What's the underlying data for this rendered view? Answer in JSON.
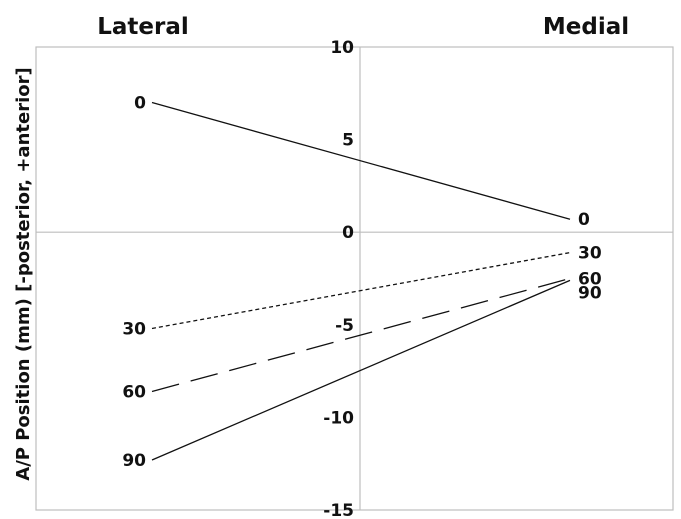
{
  "chart_data": {
    "type": "line",
    "ylabel": "A/P Position (mm) [-posterior, +anterior]",
    "categories": [
      "Lateral",
      "Medial"
    ],
    "ylim": [
      -15,
      10
    ],
    "yticks": [
      10,
      5,
      0,
      -5,
      -10,
      -15
    ],
    "grid": "axes-through-zero",
    "legend": "none",
    "series": [
      {
        "name": "0",
        "values": [
          7.0,
          0.7
        ],
        "dash": "solid"
      },
      {
        "name": "30",
        "values": [
          -5.2,
          -1.1
        ],
        "dash": "dotted"
      },
      {
        "name": "60",
        "values": [
          -8.6,
          -2.5
        ],
        "dash": "dashed"
      },
      {
        "name": "90",
        "values": [
          -12.3,
          -2.6
        ],
        "dash": "solid"
      }
    ]
  }
}
